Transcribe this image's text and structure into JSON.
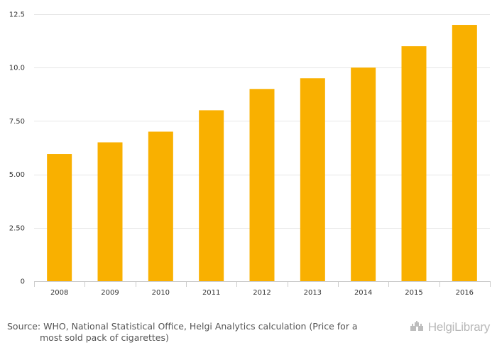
{
  "chart_data": {
    "type": "bar",
    "categories": [
      "2008",
      "2009",
      "2010",
      "2011",
      "2012",
      "2013",
      "2014",
      "2015",
      "2016"
    ],
    "values": [
      5.95,
      6.5,
      7.0,
      8.0,
      9.0,
      9.5,
      10.0,
      11.0,
      12.0
    ],
    "ylim": [
      0,
      12.5
    ],
    "yticks": [
      "0",
      "2.50",
      "5.00",
      "7.50",
      "10.0",
      "12.5"
    ],
    "ytick_values": [
      0,
      2.5,
      5,
      7.5,
      10,
      12.5
    ],
    "grid": true,
    "bar_color": "#F9B000"
  },
  "footer": {
    "source_line1": "Source: WHO, National Statistical Office, Helgi Analytics calculation (Price for a",
    "source_line2": "most sold pack of cigarettes)",
    "brand": "HelgiLibrary",
    "brand_icon": "castle-icon"
  }
}
